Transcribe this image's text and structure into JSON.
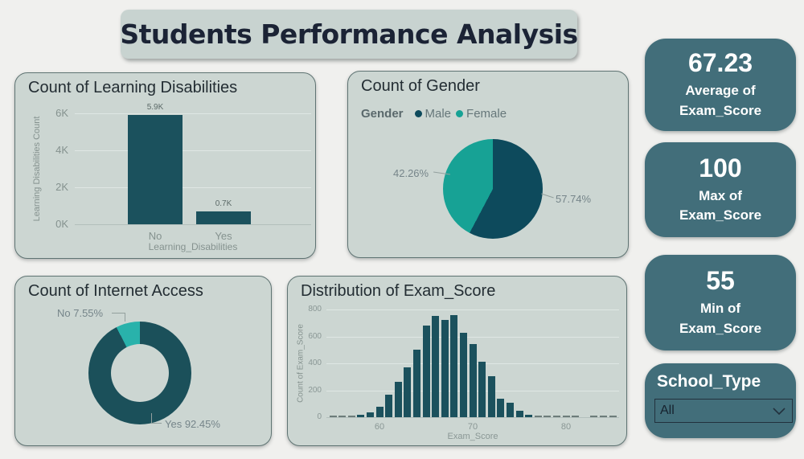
{
  "title": "Students Performance Analysis",
  "colors": {
    "page_bg": "#f0f0ee",
    "panel_bg": "#ccd6d2",
    "panel_border": "#5f7473",
    "bar_dark_teal": "#1b515d",
    "pie_male": "#0d4a5c",
    "pie_female": "#17a295",
    "donut_yes": "#1b505a",
    "donut_no": "#29b2ab",
    "kpi_bg": "#426e7a",
    "title_text": "#1b2335",
    "axis_gray": "#85928f"
  },
  "chart_data": [
    {
      "id": "learning_disabilities",
      "type": "bar",
      "title": "Count of Learning Disabilities",
      "xlabel": "Learning_Disabilities",
      "ylabel": "Learning Disabilities Count",
      "categories": [
        "No",
        "Yes"
      ],
      "values": [
        5900,
        700
      ],
      "data_labels": [
        "5.9K",
        "0.7K"
      ],
      "ylim": [
        0,
        6000
      ],
      "y_ticks": [
        {
          "v": 0,
          "label": "0K"
        },
        {
          "v": 2000,
          "label": "2K"
        },
        {
          "v": 4000,
          "label": "4K"
        },
        {
          "v": 6000,
          "label": "6K"
        }
      ],
      "grid": true,
      "legend": false,
      "bar_color": "#1b515d"
    },
    {
      "id": "gender",
      "type": "pie",
      "title": "Count of Gender",
      "legend_title": "Gender",
      "legend_position": "top",
      "slices": [
        {
          "name": "Male",
          "pct": 57.74,
          "label": "57.74%",
          "color": "#0d4a5c"
        },
        {
          "name": "Female",
          "pct": 42.26,
          "label": "42.26%",
          "color": "#17a295"
        }
      ]
    },
    {
      "id": "internet_access",
      "type": "pie",
      "subtype": "donut",
      "title": "Count of Internet Access",
      "slices": [
        {
          "name": "Yes",
          "pct": 92.45,
          "label": "Yes 92.45%",
          "color": "#1b505a"
        },
        {
          "name": "No",
          "pct": 7.55,
          "label": "No 7.55%",
          "color": "#29b2ab"
        }
      ]
    },
    {
      "id": "exam_score_distribution",
      "type": "bar",
      "subtype": "histogram",
      "title": "Distribution of Exam_Score",
      "xlabel": "Exam_Score",
      "ylabel": "Count of Exam_Score",
      "ylim": [
        0,
        800
      ],
      "y_ticks": [
        0,
        200,
        400,
        600,
        800
      ],
      "x_ticks": [
        60,
        70,
        80
      ],
      "grid": true,
      "bar_color": "#1b515d",
      "bins": [
        [
          55,
          3
        ],
        [
          56,
          3
        ],
        [
          57,
          3
        ],
        [
          58,
          20
        ],
        [
          59,
          35
        ],
        [
          60,
          75
        ],
        [
          61,
          170
        ],
        [
          62,
          260
        ],
        [
          63,
          370
        ],
        [
          64,
          500
        ],
        [
          65,
          680
        ],
        [
          66,
          750
        ],
        [
          67,
          720
        ],
        [
          68,
          760
        ],
        [
          69,
          625
        ],
        [
          70,
          545
        ],
        [
          71,
          410
        ],
        [
          72,
          305
        ],
        [
          73,
          140
        ],
        [
          74,
          105
        ],
        [
          75,
          45
        ],
        [
          76,
          15
        ],
        [
          77,
          3
        ],
        [
          78,
          3
        ],
        [
          79,
          3
        ],
        [
          80,
          3
        ],
        [
          81,
          3
        ],
        [
          83,
          3
        ],
        [
          84,
          3
        ],
        [
          85,
          3
        ]
      ]
    }
  ],
  "kpis": [
    {
      "value": "67.23",
      "label": "Average of Exam_Score"
    },
    {
      "value": "100",
      "label": "Max of Exam_Score"
    },
    {
      "value": "55",
      "label": "Min of Exam_Score"
    }
  ],
  "slicer": {
    "title": "School_Type",
    "value": "All"
  }
}
